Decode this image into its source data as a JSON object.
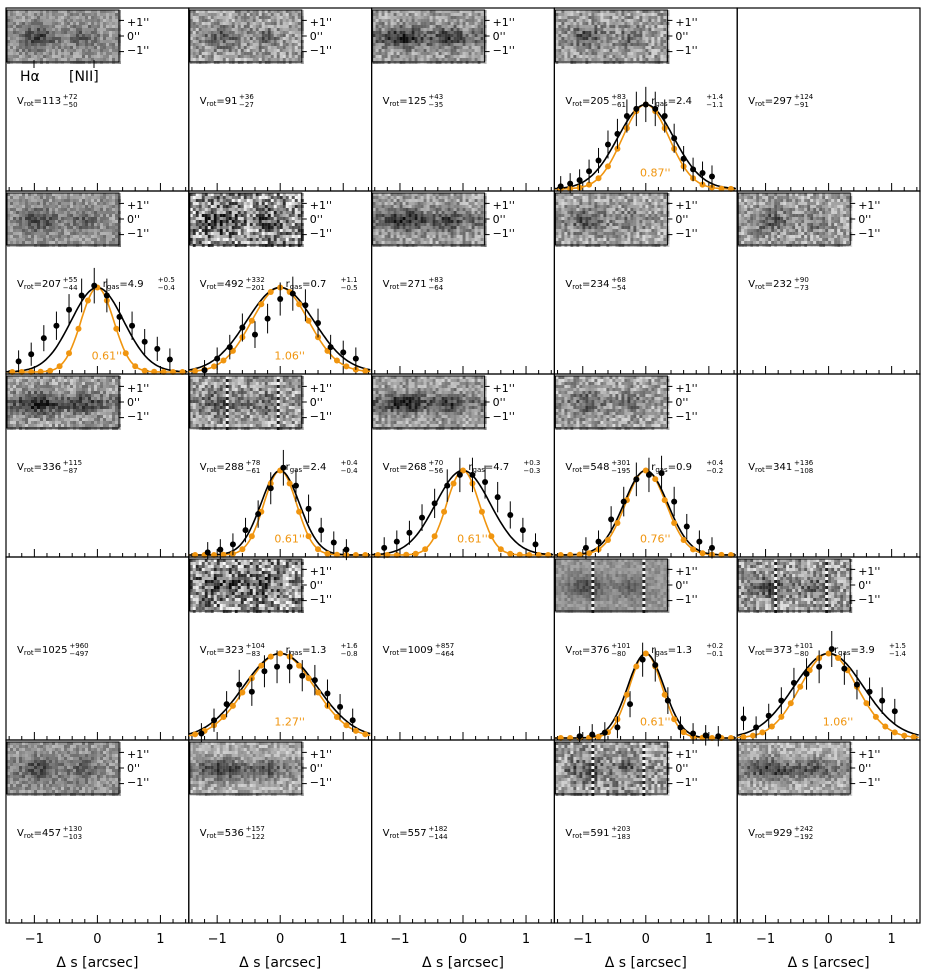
{
  "figure": {
    "xlabel": "Δ s [arcsec]",
    "xticks": [
      -1,
      0,
      1
    ],
    "slit_labels": [
      "+1''",
      "0''",
      "−1''"
    ],
    "line_labels": [
      "Hα",
      "[NII]"
    ],
    "colors": {
      "data": "#000000",
      "model": "#000000",
      "psf": "#f0950f",
      "axes": "#000000"
    }
  },
  "chart_data": {
    "type": "scatter",
    "xlim": [
      -1.45,
      1.45
    ],
    "grid": false,
    "panels": [
      {
        "row": 0,
        "col": 0,
        "stamp": "grayscale",
        "stamp_style": "A",
        "vrot": {
          "value": "113",
          "plus": "72",
          "minus": "50"
        },
        "line_labels": true
      },
      {
        "row": 0,
        "col": 1,
        "stamp": "grayscale",
        "stamp_style": "B",
        "vrot": {
          "value": "91",
          "plus": "36",
          "minus": "27"
        }
      },
      {
        "row": 0,
        "col": 2,
        "stamp": "grayscale",
        "stamp_style": "C",
        "vrot": {
          "value": "125",
          "plus": "43",
          "minus": "35"
        }
      },
      {
        "row": 0,
        "col": 3,
        "stamp": "grayscale",
        "stamp_style": "D",
        "vrot": {
          "value": "205",
          "plus": "83",
          "minus": "61"
        },
        "rgas": {
          "value": "2.4",
          "plus": "1.4",
          "minus": "1.1"
        },
        "profile": {
          "psf_fwhm_label": "0.87''",
          "model_fwhm": 1.05,
          "psf_fwhm": 0.87,
          "points": [
            [
              -1.35,
              0.03
            ],
            [
              -1.2,
              0.06
            ],
            [
              -1.05,
              0.1
            ],
            [
              -0.9,
              0.2
            ],
            [
              -0.75,
              0.32
            ],
            [
              -0.6,
              0.5
            ],
            [
              -0.45,
              0.62
            ],
            [
              -0.3,
              0.82
            ],
            [
              -0.15,
              0.9
            ],
            [
              0.0,
              0.95
            ],
            [
              0.15,
              0.9
            ],
            [
              0.3,
              0.82
            ],
            [
              0.45,
              0.57
            ],
            [
              0.6,
              0.34
            ],
            [
              0.75,
              0.22
            ],
            [
              0.9,
              0.18
            ],
            [
              1.05,
              0.14
            ]
          ]
        }
      },
      {
        "row": 0,
        "col": 4,
        "stamp": "none",
        "vrot": {
          "value": "297",
          "plus": "124",
          "minus": "91"
        }
      },
      {
        "row": 1,
        "col": 0,
        "stamp": "grayscale",
        "stamp_style": "A",
        "vrot": {
          "value": "207",
          "plus": "55",
          "minus": "44"
        },
        "rgas": {
          "value": "4.9",
          "plus": "0.5",
          "minus": "0.4"
        },
        "profile": {
          "psf_fwhm_label": "0.61''",
          "model_fwhm": 0.98,
          "psf_fwhm": 0.61,
          "points": [
            [
              -1.25,
              0.12
            ],
            [
              -1.05,
              0.2
            ],
            [
              -0.85,
              0.38
            ],
            [
              -0.65,
              0.52
            ],
            [
              -0.45,
              0.7
            ],
            [
              -0.25,
              0.86
            ],
            [
              -0.05,
              0.97
            ],
            [
              0.15,
              0.86
            ],
            [
              0.35,
              0.62
            ],
            [
              0.55,
              0.52
            ],
            [
              0.75,
              0.34
            ],
            [
              0.95,
              0.26
            ],
            [
              1.15,
              0.14
            ]
          ]
        }
      },
      {
        "row": 1,
        "col": 1,
        "stamp": "grayscale",
        "stamp_style": "E",
        "vrot": {
          "value": "492",
          "plus": "332",
          "minus": "201"
        },
        "rgas": {
          "value": "0.7",
          "plus": "1.1",
          "minus": "0.5"
        },
        "profile": {
          "psf_fwhm_label": "1.06''",
          "model_fwhm": 1.25,
          "psf_fwhm": 1.06,
          "points": [
            [
              -1.2,
              0.02
            ],
            [
              -1.0,
              0.15
            ],
            [
              -0.8,
              0.28
            ],
            [
              -0.6,
              0.5
            ],
            [
              -0.4,
              0.42
            ],
            [
              -0.2,
              0.6
            ],
            [
              0.0,
              0.82
            ],
            [
              0.2,
              0.88
            ],
            [
              0.4,
              0.75
            ],
            [
              0.6,
              0.55
            ],
            [
              0.8,
              0.28
            ],
            [
              1.0,
              0.22
            ],
            [
              1.2,
              0.15
            ]
          ]
        }
      },
      {
        "row": 1,
        "col": 2,
        "stamp": "grayscale",
        "stamp_style": "C",
        "vrot": {
          "value": "271",
          "plus": "83",
          "minus": "64"
        }
      },
      {
        "row": 1,
        "col": 3,
        "stamp": "grayscale",
        "stamp_style": "B",
        "vrot": {
          "value": "234",
          "plus": "68",
          "minus": "54"
        }
      },
      {
        "row": 1,
        "col": 4,
        "stamp": "grayscale",
        "stamp_style": "B",
        "vrot": {
          "value": "232",
          "plus": "90",
          "minus": "73"
        }
      },
      {
        "row": 2,
        "col": 0,
        "stamp": "grayscale",
        "stamp_style": "C",
        "vrot": {
          "value": "336",
          "plus": "115",
          "minus": "87"
        }
      },
      {
        "row": 2,
        "col": 1,
        "stamp": "grayscale",
        "stamp_style": "F",
        "vrot": {
          "value": "288",
          "plus": "78",
          "minus": "61"
        },
        "rgas": {
          "value": "2.4",
          "plus": "0.4",
          "minus": "0.4"
        },
        "profile": {
          "psf_fwhm_label": "0.61''",
          "model_fwhm": 0.72,
          "psf_fwhm": 0.61,
          "points": [
            [
              -1.15,
              0.03
            ],
            [
              -0.95,
              0.06
            ],
            [
              -0.75,
              0.12
            ],
            [
              -0.55,
              0.28
            ],
            [
              -0.35,
              0.46
            ],
            [
              -0.15,
              0.75
            ],
            [
              0.05,
              0.98
            ],
            [
              0.25,
              0.78
            ],
            [
              0.45,
              0.52
            ],
            [
              0.65,
              0.28
            ],
            [
              0.85,
              0.14
            ],
            [
              1.05,
              0.06
            ]
          ]
        }
      },
      {
        "row": 2,
        "col": 2,
        "stamp": "grayscale",
        "stamp_style": "C",
        "vrot": {
          "value": "268",
          "plus": "70",
          "minus": "56"
        },
        "rgas": {
          "value": "4.7",
          "plus": "0.3",
          "minus": "0.3"
        },
        "profile": {
          "psf_fwhm_label": "0.61''",
          "model_fwhm": 1.02,
          "psf_fwhm": 0.61,
          "points": [
            [
              -1.25,
              0.08
            ],
            [
              -1.05,
              0.15
            ],
            [
              -0.85,
              0.25
            ],
            [
              -0.65,
              0.42
            ],
            [
              -0.45,
              0.58
            ],
            [
              -0.25,
              0.78
            ],
            [
              -0.05,
              0.9
            ],
            [
              0.15,
              0.9
            ],
            [
              0.35,
              0.82
            ],
            [
              0.55,
              0.65
            ],
            [
              0.75,
              0.45
            ],
            [
              0.95,
              0.28
            ],
            [
              1.15,
              0.12
            ]
          ]
        }
      },
      {
        "row": 2,
        "col": 3,
        "stamp": "grayscale",
        "stamp_style": "B",
        "vrot": {
          "value": "548",
          "plus": "301",
          "minus": "195"
        },
        "rgas": {
          "value": "0.9",
          "plus": "0.4",
          "minus": "0.2"
        },
        "profile": {
          "psf_fwhm_label": "0.76''",
          "model_fwhm": 0.82,
          "psf_fwhm": 0.76,
          "points": [
            [
              -0.95,
              0.08
            ],
            [
              -0.75,
              0.15
            ],
            [
              -0.55,
              0.4
            ],
            [
              -0.35,
              0.6
            ],
            [
              -0.15,
              0.85
            ],
            [
              0.05,
              0.9
            ],
            [
              0.25,
              0.92
            ],
            [
              0.45,
              0.6
            ],
            [
              0.65,
              0.32
            ],
            [
              0.85,
              0.15
            ],
            [
              1.05,
              0.08
            ]
          ]
        }
      },
      {
        "row": 2,
        "col": 4,
        "stamp": "none",
        "vrot": {
          "value": "341",
          "plus": "136",
          "minus": "108"
        }
      },
      {
        "row": 3,
        "col": 0,
        "stamp": "none",
        "vrot": {
          "value": "1025",
          "plus": "960",
          "minus": "497"
        }
      },
      {
        "row": 3,
        "col": 1,
        "stamp": "grayscale",
        "stamp_style": "E",
        "vrot": {
          "value": "323",
          "plus": "104",
          "minus": "83"
        },
        "rgas": {
          "value": "1.3",
          "plus": "1.6",
          "minus": "0.8"
        },
        "profile": {
          "psf_fwhm_label": "1.27''",
          "model_fwhm": 1.38,
          "psf_fwhm": 1.27,
          "points": [
            [
              -1.25,
              0.05
            ],
            [
              -1.05,
              0.2
            ],
            [
              -0.85,
              0.38
            ],
            [
              -0.65,
              0.6
            ],
            [
              -0.45,
              0.52
            ],
            [
              -0.25,
              0.75
            ],
            [
              -0.05,
              0.8
            ],
            [
              0.15,
              0.8
            ],
            [
              0.35,
              0.7
            ],
            [
              0.55,
              0.65
            ],
            [
              0.75,
              0.5
            ],
            [
              0.95,
              0.35
            ],
            [
              1.15,
              0.2
            ]
          ]
        }
      },
      {
        "row": 3,
        "col": 2,
        "stamp": "none",
        "vrot": {
          "value": "1009",
          "plus": "857",
          "minus": "464"
        }
      },
      {
        "row": 3,
        "col": 3,
        "stamp": "grayscale",
        "stamp_style": "G",
        "vrot": {
          "value": "376",
          "plus": "101",
          "minus": "80"
        },
        "rgas": {
          "value": "1.3",
          "plus": "0.2",
          "minus": "0.1"
        },
        "profile": {
          "psf_fwhm_label": "0.61''",
          "model_fwhm": 0.68,
          "psf_fwhm": 0.61,
          "points": [
            [
              -1.05,
              0.02
            ],
            [
              -0.85,
              0.04
            ],
            [
              -0.65,
              0.06
            ],
            [
              -0.45,
              0.12
            ],
            [
              -0.25,
              0.38
            ],
            [
              -0.05,
              0.88
            ],
            [
              0.15,
              0.82
            ],
            [
              0.35,
              0.42
            ],
            [
              0.55,
              0.12
            ],
            [
              0.75,
              0.05
            ],
            [
              0.95,
              0.03
            ],
            [
              1.15,
              0.02
            ]
          ]
        }
      },
      {
        "row": 3,
        "col": 4,
        "stamp": "grayscale",
        "stamp_style": "F",
        "vrot": {
          "value": "373",
          "plus": "101",
          "minus": "80"
        },
        "rgas": {
          "value": "3.9",
          "plus": "1.5",
          "minus": "1.4"
        },
        "profile": {
          "psf_fwhm_label": "1.06''",
          "model_fwhm": 1.3,
          "psf_fwhm": 1.06,
          "points": [
            [
              -1.35,
              0.22
            ],
            [
              -1.15,
              0.12
            ],
            [
              -0.95,
              0.25
            ],
            [
              -0.75,
              0.42
            ],
            [
              -0.55,
              0.62
            ],
            [
              -0.35,
              0.72
            ],
            [
              -0.15,
              0.8
            ],
            [
              0.05,
              1.0
            ],
            [
              0.25,
              0.78
            ],
            [
              0.45,
              0.6
            ],
            [
              0.65,
              0.52
            ],
            [
              0.85,
              0.42
            ],
            [
              1.05,
              0.3
            ]
          ]
        }
      },
      {
        "row": 4,
        "col": 0,
        "stamp": "grayscale",
        "stamp_style": "A",
        "vrot": {
          "value": "457",
          "plus": "130",
          "minus": "103"
        }
      },
      {
        "row": 4,
        "col": 1,
        "stamp": "grayscale",
        "stamp_style": "H",
        "vrot": {
          "value": "536",
          "plus": "157",
          "minus": "122"
        }
      },
      {
        "row": 4,
        "col": 2,
        "stamp": "none",
        "vrot": {
          "value": "557",
          "plus": "182",
          "minus": "144"
        }
      },
      {
        "row": 4,
        "col": 3,
        "stamp": "grayscale",
        "stamp_style": "F",
        "vrot": {
          "value": "591",
          "plus": "203",
          "minus": "183"
        }
      },
      {
        "row": 4,
        "col": 4,
        "stamp": "grayscale",
        "stamp_style": "H",
        "vrot": {
          "value": "929",
          "plus": "242",
          "minus": "192"
        }
      }
    ]
  }
}
